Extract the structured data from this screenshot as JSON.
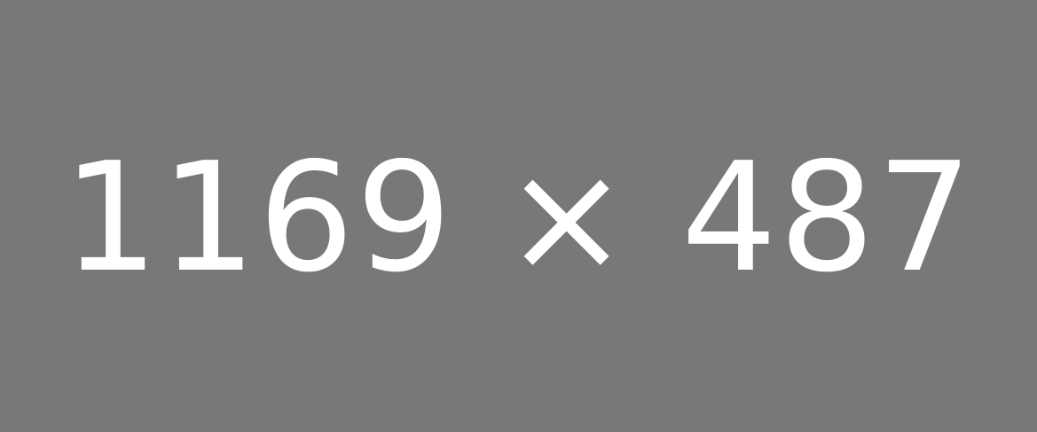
{
  "placeholder": {
    "label": "1169 × 487"
  },
  "colors": {
    "background": "#787878",
    "text": "#ffffff"
  }
}
